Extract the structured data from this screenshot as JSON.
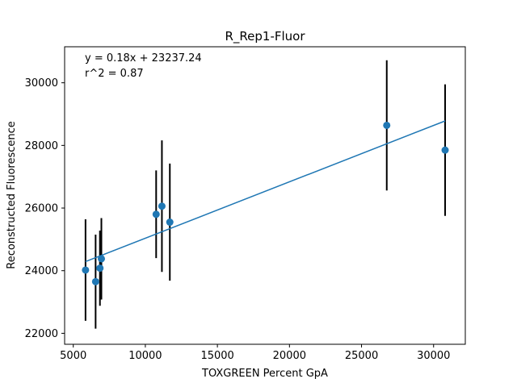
{
  "chart_data": {
    "type": "scatter",
    "title": "R_Rep1-Fluor",
    "xlabel": "TOXGREEN Percent GpA",
    "ylabel": "Reconstructed Fluorescence",
    "xlim": [
      4400,
      32200
    ],
    "ylim": [
      21650,
      31150
    ],
    "xticks": [
      5000,
      10000,
      15000,
      20000,
      25000,
      30000
    ],
    "yticks": [
      22000,
      24000,
      26000,
      28000,
      30000
    ],
    "grid": false,
    "annotations": [
      "y = 0.18x + 23237.24",
      "r^2 = 0.87"
    ],
    "colors": {
      "points": "#1f77b4",
      "fit_line": "#1f77b4",
      "error_bars": "#000000"
    },
    "series": [
      {
        "points": [
          {
            "x": 5850,
            "y": 24020,
            "err": 1620
          },
          {
            "x": 6550,
            "y": 23650,
            "err": 1500
          },
          {
            "x": 6850,
            "y": 24080,
            "err": 1200
          },
          {
            "x": 6950,
            "y": 24380,
            "err": 1300
          },
          {
            "x": 10750,
            "y": 25800,
            "err": 1400
          },
          {
            "x": 11150,
            "y": 26060,
            "err": 2100
          },
          {
            "x": 11700,
            "y": 25550,
            "err": 1870
          },
          {
            "x": 26750,
            "y": 28640,
            "err": 2080
          },
          {
            "x": 30800,
            "y": 27850,
            "err": 2100
          }
        ]
      }
    ],
    "fit": {
      "slope": 0.18,
      "intercept": 23237.24,
      "x_range": [
        5850,
        30800
      ]
    }
  }
}
